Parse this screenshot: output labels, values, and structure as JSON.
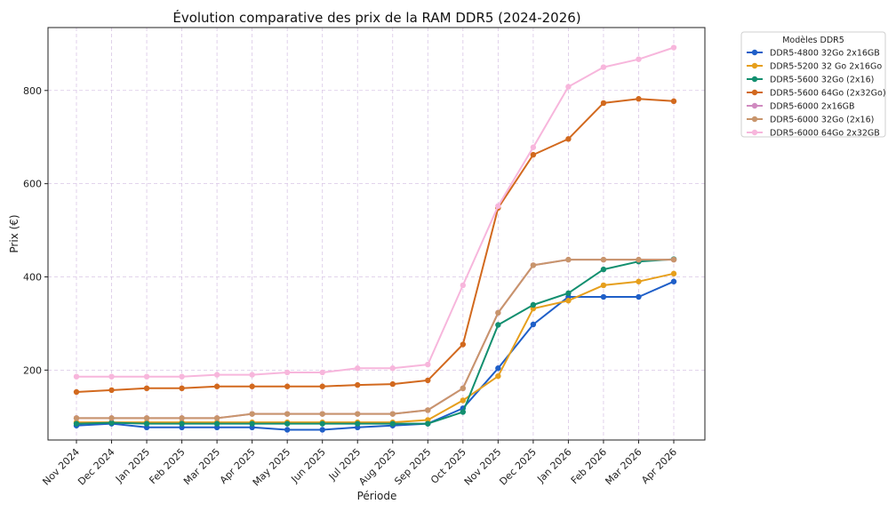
{
  "chart_data": {
    "type": "line",
    "title": "Évolution comparative des prix de la RAM DDR5 (2024-2026)",
    "xlabel": "Période",
    "ylabel": "Prix (€)",
    "ylim": [
      50,
      935
    ],
    "yticks": [
      200,
      400,
      600,
      800
    ],
    "grid": true,
    "legend_position": "outside-right",
    "legend_title": "Modèles DDR5",
    "categories": [
      "Nov 2024",
      "Dec 2024",
      "Jan 2025",
      "Feb 2025",
      "Mar 2025",
      "Apr 2025",
      "May 2025",
      "Jun 2025",
      "Jul 2025",
      "Aug 2025",
      "Sep 2025",
      "Oct 2025",
      "Nov 2025",
      "Dec 2025",
      "Jan 2026",
      "Feb 2026",
      "Mar 2026",
      "Apr 2026"
    ],
    "series": [
      {
        "name": "DDR5-4800 32Go 2x16GB",
        "color": "#1f5fc8",
        "values": [
          81,
          85,
          77,
          77,
          77,
          77,
          72,
          72,
          77,
          81,
          85,
          118,
          204,
          298,
          357,
          357,
          357,
          390
        ]
      },
      {
        "name": "DDR5-5200 32 Go 2x16Go",
        "color": "#e69f1c",
        "values": [
          88,
          88,
          88,
          88,
          88,
          88,
          88,
          88,
          88,
          88,
          93,
          135,
          187,
          332,
          349,
          382,
          390,
          407
        ]
      },
      {
        "name": "DDR5-5600 32Go (2x16)",
        "color": "#128f6f",
        "values": [
          85,
          87,
          85,
          85,
          85,
          85,
          85,
          85,
          85,
          85,
          85,
          110,
          297,
          340,
          365,
          416,
          433,
          438
        ]
      },
      {
        "name": "DDR5-5600 64Go (2x32Go)",
        "color": "#d2691e",
        "values": [
          153,
          157,
          161,
          161,
          165,
          165,
          165,
          165,
          168,
          170,
          178,
          255,
          548,
          662,
          696,
          773,
          782,
          777
        ]
      },
      {
        "name": "DDR5-6000 2x16GB",
        "color": "#d08ac0",
        "values": [
          97,
          97,
          97,
          97,
          97,
          106,
          106,
          106,
          106,
          106,
          114,
          161,
          323,
          425,
          437,
          437,
          437,
          437
        ]
      },
      {
        "name": "DDR5-6000 32Go (2x16)",
        "color": "#c8956c",
        "values": [
          97,
          97,
          97,
          97,
          97,
          106,
          106,
          106,
          106,
          106,
          114,
          161,
          323,
          425,
          437,
          437,
          437,
          437
        ]
      },
      {
        "name": "DDR5-6000 64Go 2x32GB",
        "color": "#f7b6dc",
        "values": [
          186,
          186,
          186,
          186,
          190,
          190,
          195,
          195,
          204,
          204,
          212,
          382,
          552,
          678,
          808,
          850,
          867,
          892
        ]
      }
    ]
  }
}
